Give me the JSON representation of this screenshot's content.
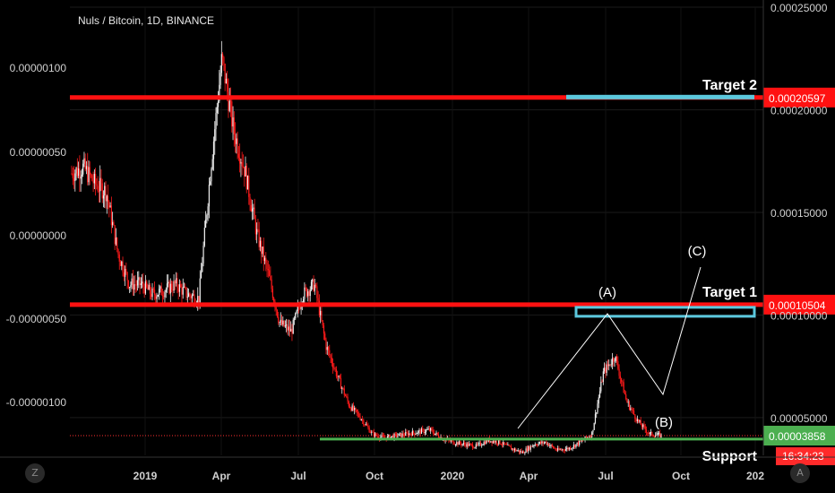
{
  "chart_data": {
    "type": "candlestick",
    "title": "Nuls / Bitcoin, 1D, BINANCE",
    "colors": {
      "up": "#f0f0f0",
      "down": "#ff1a1a",
      "resistance": "#ff1111",
      "target_box": "#5bc8dd",
      "support": "#4caf50",
      "wave": "#ffffff"
    },
    "left_axis_ticks": [
      "0.00000100",
      "0.00000050",
      "0.00000000",
      "-0.00000050",
      "-0.00000100"
    ],
    "right_axis_ticks": [
      "0.00025000",
      "0.00020000",
      "0.00015000",
      "0.00010000",
      "0.00005000"
    ],
    "right_axis_range": [
      3.16e-05,
      0.00025
    ],
    "x_axis_ticks": [
      "2019",
      "Apr",
      "Jul",
      "Oct",
      "2020",
      "Apr",
      "Jul",
      "Oct",
      "202"
    ],
    "levels": [
      {
        "name": "Target 2",
        "price": "0.00020597",
        "value": 0.00020597
      },
      {
        "name": "Target 1",
        "price": "0.00010504",
        "value": 0.00010504
      },
      {
        "name": "Support",
        "price": "",
        "value": 3.95e-05
      }
    ],
    "last_price": {
      "value": "0.00004122",
      "countdown": "16:34:23"
    },
    "low_price": {
      "value": "0.00003858"
    },
    "wave_labels": [
      "(A)",
      "(B)",
      "(C)"
    ],
    "close_path_approx": [
      [
        0.000169,
        0.000172
      ],
      [
        0.000164,
        0.00016
      ],
      [
        0.00013,
        0.000115
      ],
      [
        0.000115,
        0.00011
      ],
      [
        0.000112,
        0.000115
      ],
      [
        0.00011,
        0.000108
      ],
      [
        0.00017,
        0.000225
      ],
      [
        0.00019,
        0.00017
      ],
      [
        0.00014,
        0.00012
      ],
      [
        9.6e-05,
        9.2e-05
      ],
      [
        0.00011,
        0.000115
      ],
      [
        8.5e-05,
        7e-05
      ],
      [
        5.6e-05,
        5e-05
      ],
      [
        4.2e-05,
        4e-05
      ],
      [
        4.1e-05,
        4.2e-05
      ],
      [
        4.3e-05,
        4.4e-05
      ],
      [
        4e-05,
        3.8e-05
      ],
      [
        3.7e-05,
        3.6e-05
      ],
      [
        3.9e-05,
        3.8e-05
      ],
      [
        3.5e-05,
        3.3e-05
      ],
      [
        3.7e-05,
        3.8e-05
      ],
      [
        3.4e-05,
        3.5e-05
      ],
      [
        3.8e-05,
        4.2e-05
      ],
      [
        7.2e-05,
        8e-05
      ],
      [
        5.8e-05,
        4.8e-05
      ],
      [
        4.2e-05,
        4.12e-05
      ]
    ]
  },
  "ui": {
    "left_corner": "Z",
    "right_corner": "A"
  }
}
